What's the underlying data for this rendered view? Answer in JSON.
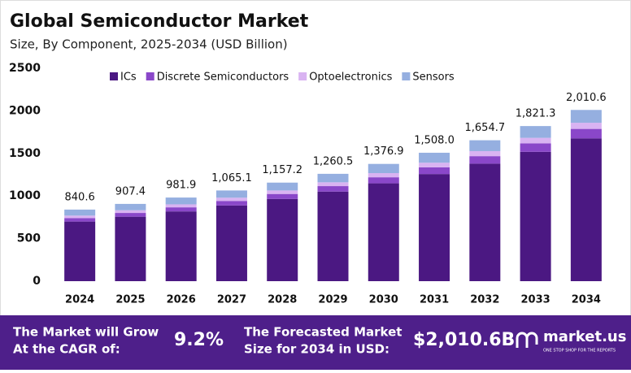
{
  "chart_data": {
    "type": "stacked_bar",
    "title": "Global Semiconductor Market",
    "subtitle": "Size, By Component, 2025-2034 (USD Billion)",
    "categories": [
      "2024",
      "2025",
      "2026",
      "2027",
      "2028",
      "2029",
      "2030",
      "2031",
      "2032",
      "2033",
      "2034"
    ],
    "series": [
      {
        "name": "ICs",
        "color": "#4b1882",
        "values": [
          700,
          757,
          819,
          889,
          966,
          1052,
          1149,
          1258,
          1380,
          1519,
          1677
        ]
      },
      {
        "name": "Discrete Semiconductors",
        "color": "#8a47c9",
        "values": [
          40,
          44,
          48,
          53,
          58,
          64,
          71,
          79,
          88,
          99,
          111
        ]
      },
      {
        "name": "Optoelectronics",
        "color": "#d9b3f2",
        "values": [
          30,
          32,
          35,
          38,
          41,
          45,
          49,
          54,
          59,
          65,
          72
        ]
      },
      {
        "name": "Sensors",
        "color": "#95afe0",
        "values": [
          70.6,
          74.4,
          79.9,
          85.1,
          92.2,
          99.5,
          107.9,
          117.0,
          127.7,
          138.3,
          150.6
        ]
      }
    ],
    "totals": {
      "values": [
        840.6,
        907.4,
        981.9,
        1065.1,
        1157.2,
        1260.5,
        1376.9,
        1508.0,
        1654.7,
        1821.3,
        2010.6
      ],
      "value_labels": [
        "840.6",
        "907.4",
        "981.9",
        "1,065.1",
        "1,157.2",
        "1,260.5",
        "1,376.9",
        "1,508.0",
        "1,654.7",
        "1,821.3",
        "2,010.6"
      ]
    },
    "ylim": [
      0,
      2500
    ],
    "yticks": [
      0,
      500,
      1000,
      1500,
      2000,
      2500
    ],
    "grid": false
  },
  "footer": {
    "cagr_label": [
      "The Market will Grow",
      "At the CAGR of:"
    ],
    "cagr": "9.2%",
    "forecast_label": [
      "The Forecasted Market",
      "Size for 2034 in USD:"
    ],
    "forecast": "$2,010.6B",
    "brand": "market.us",
    "tagline": "ONE STOP SHOP FOR THE REPORTS"
  }
}
